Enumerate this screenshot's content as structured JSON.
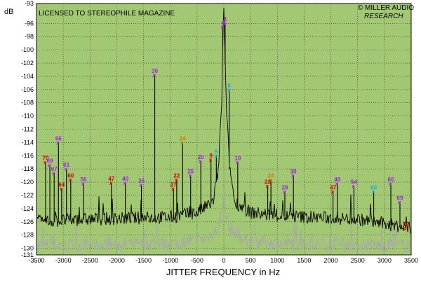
{
  "chart_data": {
    "type": "line",
    "title": "",
    "banner": "LICENSED TO STEREOPHILE MAGAZINE",
    "brand": {
      "line1": "MILLER AUDIO",
      "line2": "RESEARCH",
      "logo_glyph": "©"
    },
    "ylabel": "dB",
    "xlabel": "JITTER FREQUENCY in Hz",
    "xlim": [
      -3500,
      3500
    ],
    "ylim": [
      -131,
      -93
    ],
    "x_ticks": [
      -3500,
      -3000,
      -2500,
      -2000,
      -1500,
      -1000,
      -500,
      0,
      500,
      1000,
      1500,
      2000,
      2500,
      3000,
      3500
    ],
    "y_ticks": [
      -93,
      -96,
      -98,
      -100,
      -102,
      -104,
      -106,
      -108,
      -110,
      -112,
      -114,
      -116,
      -118,
      -120,
      -122,
      -124,
      -126,
      -128,
      -130,
      -131
    ],
    "grid": true,
    "colors": {
      "plot_bg": "#a3c873",
      "grid": "#333333",
      "black_trace": "#000000",
      "gray_trace": "#a8a8a8",
      "red": "#d40000",
      "magenta": "#a020e0",
      "cyan": "#18a8e0",
      "orange": "#c88000",
      "green": "#10a040"
    },
    "series": [
      {
        "name": "",
        "color": "#000000",
        "noise_floor": -125.5,
        "points": [
          [
            -3500,
            -126
          ],
          [
            -2500,
            -125.6
          ],
          [
            -1000,
            -125.3
          ],
          [
            -500,
            -124.6
          ],
          [
            -200,
            -123
          ],
          [
            -100,
            -118
          ],
          [
            -40,
            -108
          ],
          [
            -12,
            -96
          ],
          [
            0,
            -94
          ],
          [
            12,
            -98
          ],
          [
            40,
            -107
          ],
          [
            100,
            -117
          ],
          [
            200,
            -123
          ],
          [
            500,
            -124.6
          ],
          [
            1000,
            -125.1
          ],
          [
            2500,
            -125.6
          ],
          [
            3500,
            -127
          ]
        ]
      },
      {
        "name": "",
        "color": "#a8a8a8",
        "noise_floor": -129.3,
        "points": [
          [
            -3500,
            -129.6
          ],
          [
            -1000,
            -129.3
          ],
          [
            -400,
            -128.8
          ],
          [
            -100,
            -127
          ],
          [
            -30,
            -124
          ],
          [
            0,
            -121
          ],
          [
            30,
            -124
          ],
          [
            100,
            -127
          ],
          [
            400,
            -128.8
          ],
          [
            1000,
            -129.3
          ],
          [
            3500,
            -129.6
          ]
        ]
      }
    ],
    "peaks": [
      {
        "x": -3090,
        "y": -114,
        "label": "66",
        "color": "#a020e0"
      },
      {
        "x": -3330,
        "y": -117,
        "label": "70",
        "color": "#d40000"
      },
      {
        "x": -3250,
        "y": -117.4,
        "label": "69",
        "color": "#a020e0"
      },
      {
        "x": -3170,
        "y": -118.6,
        "label": "67",
        "color": "#a020e0"
      },
      {
        "x": -2940,
        "y": -118,
        "label": "61",
        "color": "#a020e0"
      },
      {
        "x": -2860,
        "y": -119.6,
        "label": "60",
        "color": "#d40000"
      },
      {
        "x": -3030,
        "y": -121,
        "label": "64",
        "color": "#d40000"
      },
      {
        "x": -2620,
        "y": -120.2,
        "label": "56",
        "color": "#a020e0"
      },
      {
        "x": -2100,
        "y": -120.1,
        "label": "47",
        "color": "#d40000"
      },
      {
        "x": -1840,
        "y": -120.1,
        "label": "40",
        "color": "#a020e0"
      },
      {
        "x": -1540,
        "y": -120.4,
        "label": "36",
        "color": "#a020e0"
      },
      {
        "x": -1290,
        "y": -103.8,
        "label": "30",
        "color": "#a020e0"
      },
      {
        "x": -880,
        "y": -119.6,
        "label": "22",
        "color": "#d40000"
      },
      {
        "x": -940,
        "y": -121,
        "label": "27",
        "color": "#d40000"
      },
      {
        "x": -770,
        "y": -114,
        "label": "24",
        "color": "#c88000"
      },
      {
        "x": -620,
        "y": -119,
        "label": "25",
        "color": "#a020e0"
      },
      {
        "x": -430,
        "y": -116.8,
        "label": "20",
        "color": "#a020e0"
      },
      {
        "x": -240,
        "y": -116.6,
        "label": "9",
        "color": "#d40000"
      },
      {
        "x": -140,
        "y": -116,
        "label": "5",
        "color": "#18a8e0"
      },
      {
        "x": -20,
        "y": -96.5,
        "label": "4",
        "color": "#a020e0"
      },
      {
        "x": 25,
        "y": -96,
        "label": "4",
        "color": "#a020e0"
      },
      {
        "x": 100,
        "y": -106,
        "label": "6",
        "color": "#18a8e0"
      },
      {
        "x": 260,
        "y": -117,
        "label": "10",
        "color": "#a020e0"
      },
      {
        "x": 820,
        "y": -120.6,
        "label": "22",
        "color": "#d40000"
      },
      {
        "x": 880,
        "y": -119.6,
        "label": "24",
        "color": "#c88000"
      },
      {
        "x": 1300,
        "y": -119,
        "label": "30",
        "color": "#a020e0"
      },
      {
        "x": 1140,
        "y": -121.4,
        "label": "28",
        "color": "#a020e0"
      },
      {
        "x": 2040,
        "y": -121.4,
        "label": "47",
        "color": "#d40000"
      },
      {
        "x": 2120,
        "y": -120.2,
        "label": "48",
        "color": "#a020e0"
      },
      {
        "x": 2430,
        "y": -120.6,
        "label": "54",
        "color": "#a020e0"
      },
      {
        "x": 2800,
        "y": -121.4,
        "label": "60",
        "color": "#18a8e0"
      },
      {
        "x": 3120,
        "y": -120.2,
        "label": "66",
        "color": "#a020e0"
      },
      {
        "x": 3290,
        "y": -123,
        "label": "69",
        "color": "#a020e0"
      },
      {
        "x": 3400,
        "y": -127,
        "label": "70",
        "color": "#d40000"
      }
    ]
  }
}
